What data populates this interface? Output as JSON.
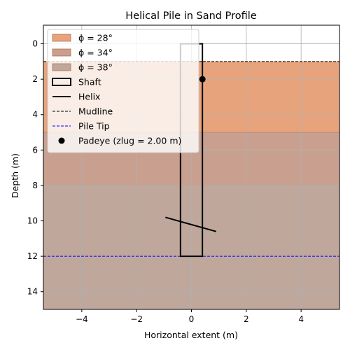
{
  "chart_data": {
    "type": "area",
    "title": "Helical Pile in Sand Profile",
    "xlabel": "Horizontal extent (m)",
    "ylabel": "Depth (m)",
    "xlim": [
      -5.4,
      5.4
    ],
    "ylim": [
      15,
      -1.05
    ],
    "y_inverted": true,
    "grid": true,
    "legend_position": "top-left",
    "x_ticks": [
      -4,
      -2,
      0,
      2,
      4
    ],
    "x_tick_labels": [
      "−4",
      "−2",
      "0",
      "2",
      "4"
    ],
    "y_ticks": [
      0,
      2,
      4,
      6,
      8,
      10,
      12,
      14
    ],
    "y_tick_labels": [
      "0",
      "2",
      "4",
      "6",
      "8",
      "10",
      "12",
      "14"
    ],
    "soil_layers": [
      {
        "label": "ϕ = 28°",
        "top": 1.0,
        "bottom": 5.0,
        "color": "#e7a47c"
      },
      {
        "label": "ϕ = 34°",
        "top": 5.0,
        "bottom": 8.0,
        "color": "#c9a090"
      },
      {
        "label": "ϕ = 38°",
        "top": 8.0,
        "bottom": 15.0,
        "color": "#bfa79c"
      }
    ],
    "shaft": {
      "label": "Shaft",
      "x_left": -0.4,
      "x_right": 0.4,
      "top": 0.0,
      "bottom": 12.0
    },
    "helix": {
      "label": "Helix",
      "x": [
        -0.95,
        0.9
      ],
      "y": [
        9.8,
        10.6
      ]
    },
    "mudline": {
      "label": "Mudline",
      "depth": 1.0
    },
    "pile_tip": {
      "label": "Pile Tip",
      "depth": 12.0
    },
    "padeye": {
      "label": "Padeye (zlug = 2.00 m)",
      "x": 0.4,
      "y": 2.0
    },
    "legend": [
      {
        "label": "ϕ = 28°",
        "kind": "patch",
        "color": "#e7a47c"
      },
      {
        "label": "ϕ = 34°",
        "kind": "patch",
        "color": "#c9a090"
      },
      {
        "label": "ϕ = 38°",
        "kind": "patch",
        "color": "#bfa79c"
      },
      {
        "label": "Shaft",
        "kind": "rect-outline",
        "color": "#000000"
      },
      {
        "label": "Helix",
        "kind": "line",
        "color": "#000000"
      },
      {
        "label": "Mudline",
        "kind": "dashed",
        "color": "#000000"
      },
      {
        "label": "Pile Tip",
        "kind": "dashed",
        "color": "#0000ff"
      },
      {
        "label": "Padeye (zlug = 2.00 m)",
        "kind": "dot",
        "color": "#000000"
      }
    ]
  }
}
